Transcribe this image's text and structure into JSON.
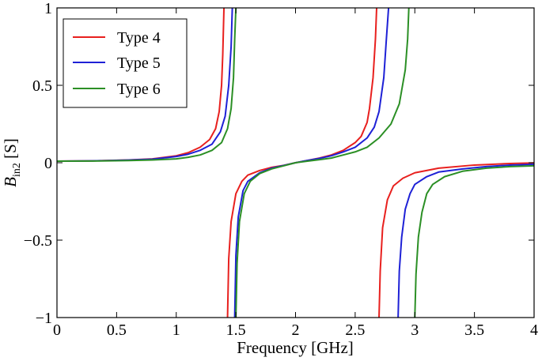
{
  "chart_data": {
    "type": "line",
    "xlabel": "Frequency [GHz]",
    "ylabel_main": "B",
    "ylabel_sub": "in2",
    "ylabel_unit": " [S]",
    "xlim": [
      0,
      4
    ],
    "ylim": [
      -1,
      1
    ],
    "xticks": [
      0,
      0.5,
      1,
      1.5,
      2,
      2.5,
      3,
      3.5,
      4
    ],
    "xtick_labels": [
      "0",
      "0.5",
      "1",
      "1.5",
      "2",
      "2.5",
      "3",
      "3.5",
      "4"
    ],
    "yticks": [
      -1,
      -0.5,
      0,
      0.5,
      1
    ],
    "ytick_labels": [
      "−1",
      "−0.5",
      "0",
      "0.5",
      "1"
    ],
    "grid": false,
    "legend_position": "top-left",
    "series": [
      {
        "name": "Type 4",
        "color": "#e8201e",
        "segments": [
          [
            [
              0,
              0.01
            ],
            [
              0.3,
              0.012
            ],
            [
              0.6,
              0.018
            ],
            [
              0.8,
              0.025
            ],
            [
              1.0,
              0.045
            ],
            [
              1.1,
              0.065
            ],
            [
              1.2,
              0.1
            ],
            [
              1.28,
              0.15
            ],
            [
              1.33,
              0.22
            ],
            [
              1.36,
              0.33
            ],
            [
              1.38,
              0.5
            ],
            [
              1.39,
              0.7
            ],
            [
              1.4,
              1.0
            ]
          ],
          [
            [
              1.43,
              -1.0
            ],
            [
              1.44,
              -0.62
            ],
            [
              1.46,
              -0.38
            ],
            [
              1.5,
              -0.2
            ],
            [
              1.55,
              -0.12
            ],
            [
              1.6,
              -0.08
            ],
            [
              1.7,
              -0.05
            ],
            [
              1.8,
              -0.03
            ],
            [
              1.9,
              -0.017
            ],
            [
              2.0,
              0.0
            ],
            [
              2.1,
              0.015
            ],
            [
              2.2,
              0.03
            ],
            [
              2.3,
              0.05
            ],
            [
              2.4,
              0.08
            ],
            [
              2.5,
              0.13
            ],
            [
              2.55,
              0.17
            ],
            [
              2.6,
              0.26
            ],
            [
              2.62,
              0.35
            ],
            [
              2.65,
              0.55
            ],
            [
              2.67,
              0.8
            ],
            [
              2.68,
              1.0
            ]
          ],
          [
            [
              2.7,
              -1.0
            ],
            [
              2.71,
              -0.7
            ],
            [
              2.73,
              -0.42
            ],
            [
              2.77,
              -0.24
            ],
            [
              2.82,
              -0.15
            ],
            [
              2.9,
              -0.1
            ],
            [
              3.0,
              -0.065
            ],
            [
              3.2,
              -0.035
            ],
            [
              3.5,
              -0.015
            ],
            [
              3.8,
              -0.005
            ],
            [
              4.0,
              -0.001
            ]
          ]
        ]
      },
      {
        "name": "Type 5",
        "color": "#1e21d6",
        "segments": [
          [
            [
              0,
              0.01
            ],
            [
              0.3,
              0.012
            ],
            [
              0.6,
              0.017
            ],
            [
              0.8,
              0.023
            ],
            [
              1.0,
              0.04
            ],
            [
              1.1,
              0.055
            ],
            [
              1.2,
              0.08
            ],
            [
              1.3,
              0.12
            ],
            [
              1.37,
              0.2
            ],
            [
              1.41,
              0.3
            ],
            [
              1.44,
              0.5
            ],
            [
              1.46,
              0.75
            ],
            [
              1.47,
              1.0
            ]
          ],
          [
            [
              1.49,
              -1.0
            ],
            [
              1.5,
              -0.6
            ],
            [
              1.52,
              -0.35
            ],
            [
              1.56,
              -0.18
            ],
            [
              1.6,
              -0.12
            ],
            [
              1.7,
              -0.065
            ],
            [
              1.8,
              -0.035
            ],
            [
              1.9,
              -0.018
            ],
            [
              2.0,
              0.0
            ],
            [
              2.1,
              0.015
            ],
            [
              2.2,
              0.028
            ],
            [
              2.3,
              0.045
            ],
            [
              2.4,
              0.07
            ],
            [
              2.5,
              0.1
            ],
            [
              2.6,
              0.16
            ],
            [
              2.66,
              0.23
            ],
            [
              2.7,
              0.33
            ],
            [
              2.74,
              0.55
            ],
            [
              2.76,
              0.78
            ],
            [
              2.78,
              1.0
            ]
          ],
          [
            [
              2.86,
              -1.0
            ],
            [
              2.87,
              -0.7
            ],
            [
              2.89,
              -0.48
            ],
            [
              2.92,
              -0.3
            ],
            [
              2.96,
              -0.2
            ],
            [
              3.0,
              -0.14
            ],
            [
              3.1,
              -0.09
            ],
            [
              3.2,
              -0.06
            ],
            [
              3.4,
              -0.04
            ],
            [
              3.6,
              -0.025
            ],
            [
              3.8,
              -0.015
            ],
            [
              4.0,
              -0.01
            ]
          ]
        ]
      },
      {
        "name": "Type 6",
        "color": "#2b8f25",
        "segments": [
          [
            [
              0,
              0.01
            ],
            [
              0.3,
              0.011
            ],
            [
              0.6,
              0.014
            ],
            [
              0.8,
              0.018
            ],
            [
              1.0,
              0.025
            ],
            [
              1.1,
              0.035
            ],
            [
              1.2,
              0.05
            ],
            [
              1.3,
              0.08
            ],
            [
              1.38,
              0.13
            ],
            [
              1.43,
              0.22
            ],
            [
              1.46,
              0.35
            ],
            [
              1.48,
              0.55
            ],
            [
              1.49,
              0.8
            ],
            [
              1.5,
              1.0
            ]
          ],
          [
            [
              1.5,
              -1.0
            ],
            [
              1.51,
              -0.65
            ],
            [
              1.53,
              -0.38
            ],
            [
              1.57,
              -0.2
            ],
            [
              1.62,
              -0.12
            ],
            [
              1.7,
              -0.07
            ],
            [
              1.8,
              -0.04
            ],
            [
              1.9,
              -0.02
            ],
            [
              2.0,
              0.0
            ],
            [
              2.1,
              0.01
            ],
            [
              2.2,
              0.02
            ],
            [
              2.3,
              0.03
            ],
            [
              2.4,
              0.05
            ],
            [
              2.5,
              0.07
            ],
            [
              2.6,
              0.1
            ],
            [
              2.7,
              0.16
            ],
            [
              2.8,
              0.25
            ],
            [
              2.87,
              0.38
            ],
            [
              2.92,
              0.6
            ],
            [
              2.94,
              0.8
            ],
            [
              2.95,
              1.0
            ]
          ],
          [
            [
              3.0,
              -1.0
            ],
            [
              3.01,
              -0.72
            ],
            [
              3.03,
              -0.48
            ],
            [
              3.06,
              -0.32
            ],
            [
              3.1,
              -0.2
            ],
            [
              3.15,
              -0.14
            ],
            [
              3.25,
              -0.09
            ],
            [
              3.4,
              -0.055
            ],
            [
              3.6,
              -0.035
            ],
            [
              3.8,
              -0.025
            ],
            [
              4.0,
              -0.02
            ]
          ]
        ]
      }
    ]
  }
}
